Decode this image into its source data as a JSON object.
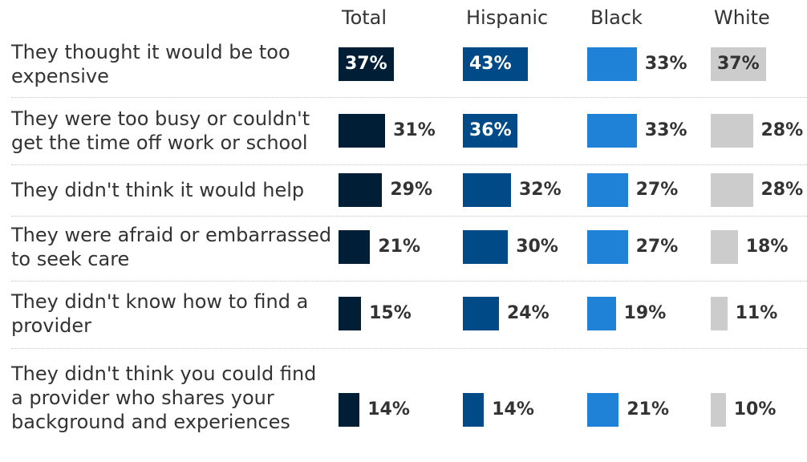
{
  "chart_data": {
    "type": "bar",
    "groups": [
      "Total",
      "Hispanic",
      "Black",
      "White"
    ],
    "colors": [
      "#001e36",
      "#004b87",
      "#1f82d6",
      "#cccccc"
    ],
    "categories": [
      "They thought it would be too expensive",
      "They were too busy or couldn't get the time off work or school",
      "They didn't think it would help",
      "They were afraid or embarrassed to seek care",
      "They didn't know how to find a provider",
      "They didn't think you could find a provider who shares your background and experiences"
    ],
    "series": [
      {
        "name": "Total",
        "values": [
          37,
          31,
          29,
          21,
          15,
          14
        ]
      },
      {
        "name": "Hispanic",
        "values": [
          43,
          36,
          32,
          30,
          24,
          14
        ]
      },
      {
        "name": "Black",
        "values": [
          33,
          33,
          27,
          27,
          19,
          21
        ]
      },
      {
        "name": "White",
        "values": [
          37,
          28,
          28,
          18,
          11,
          10
        ]
      }
    ],
    "value_labels": [
      [
        "37%",
        "31%",
        "29%",
        "21%",
        "15%",
        "14%"
      ],
      [
        "43%",
        "36%",
        "32%",
        "30%",
        "24%",
        "14%"
      ],
      [
        "33%",
        "33%",
        "27%",
        "27%",
        "19%",
        "21%"
      ],
      [
        "37%",
        "28%",
        "28%",
        "18%",
        "11%",
        "10%"
      ]
    ],
    "xlim": [
      0,
      43
    ],
    "grid": false,
    "legend": "none"
  }
}
